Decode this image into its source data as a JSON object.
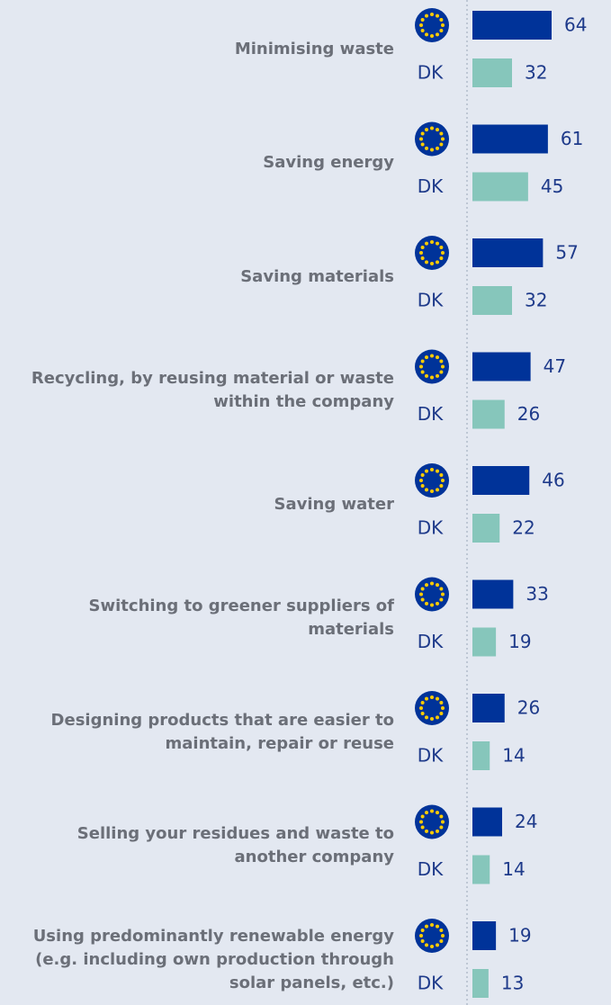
{
  "chart_data": {
    "type": "bar",
    "orientation": "horizontal",
    "categories": [
      "Minimising waste",
      "Saving energy",
      "Saving materials",
      "Recycling, by reusing material or waste within the company",
      "Saving water",
      "Switching to greener suppliers of materials",
      "Designing products that are easier to maintain, repair or reuse",
      "Selling your residues and waste to another company",
      "Using predominantly renewable energy (e.g. including own production through solar panels, etc.)"
    ],
    "series": [
      {
        "color": "#003399",
        "values": [
          64,
          61,
          57,
          47,
          46,
          33,
          26,
          24,
          19
        ]
      },
      {
        "name": "DK",
        "color": "#86c6bb",
        "values": [
          32,
          45,
          32,
          26,
          22,
          19,
          14,
          14,
          13
        ]
      }
    ]
  }
}
